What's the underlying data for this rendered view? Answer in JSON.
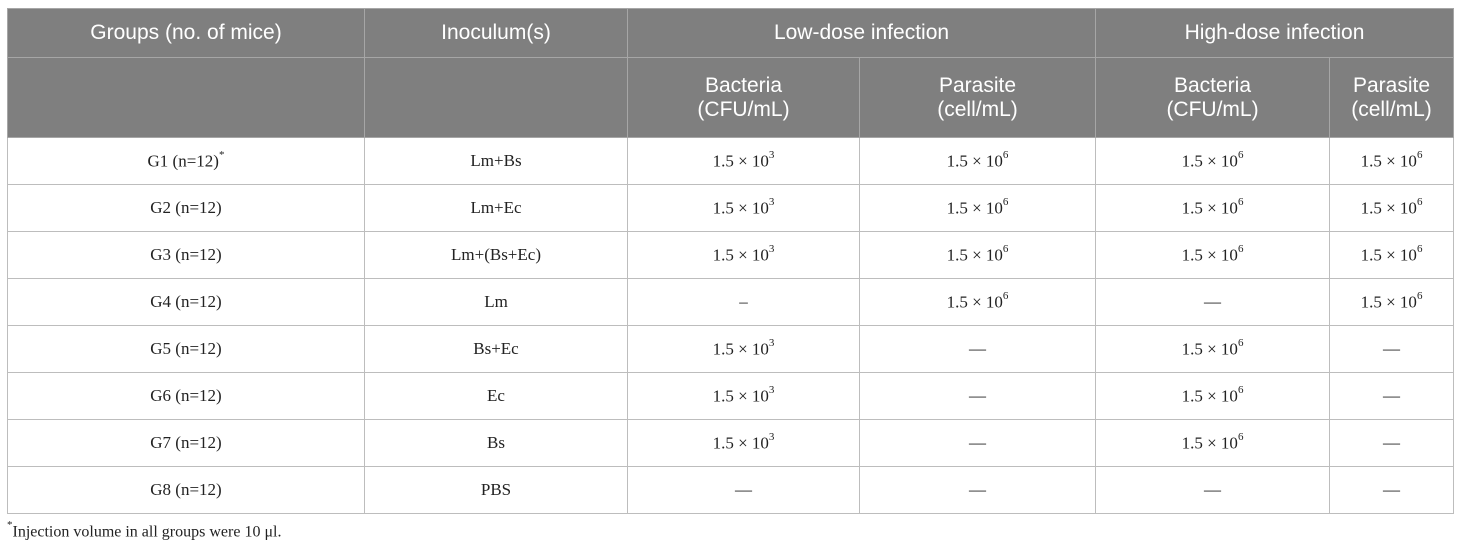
{
  "table": {
    "headers": {
      "groups": "Groups (no. of mice)",
      "inoculum": "Inoculum(s)",
      "low_dose": "Low-dose infection",
      "high_dose": "High-dose infection",
      "bacteria_line1": "Bacteria",
      "bacteria_line2": "(CFU/mL)",
      "parasite_line1": "Parasite",
      "parasite_line2": "(cell/mL)"
    },
    "rows": [
      {
        "group": "G1 (n=12)",
        "group_mark": "*",
        "inoculum": "Lm+Bs",
        "low_bacteria": {
          "base": "1.5 × 10",
          "exp": "3"
        },
        "low_parasite": {
          "base": "1.5 × 10",
          "exp": "6"
        },
        "high_bacteria": {
          "base": "1.5 × 10",
          "exp": "6"
        },
        "high_parasite": {
          "base": "1.5 × 10",
          "exp": "6"
        }
      },
      {
        "group": "G2 (n=12)",
        "group_mark": "",
        "inoculum": "Lm+Ec",
        "low_bacteria": {
          "base": "1.5 × 10",
          "exp": "3"
        },
        "low_parasite": {
          "base": "1.5 × 10",
          "exp": "6"
        },
        "high_bacteria": {
          "base": "1.5 × 10",
          "exp": "6"
        },
        "high_parasite": {
          "base": "1.5 × 10",
          "exp": "6"
        }
      },
      {
        "group": "G3 (n=12)",
        "group_mark": "",
        "inoculum": "Lm+(Bs+Ec)",
        "low_bacteria": {
          "base": "1.5 × 10",
          "exp": "3"
        },
        "low_parasite": {
          "base": "1.5 × 10",
          "exp": "6"
        },
        "high_bacteria": {
          "base": "1.5 × 10",
          "exp": "6"
        },
        "high_parasite": {
          "base": "1.5 × 10",
          "exp": "6"
        }
      },
      {
        "group": "G4 (n=12)",
        "group_mark": "",
        "inoculum": "Lm",
        "low_bacteria": {
          "base": "–",
          "exp": ""
        },
        "low_parasite": {
          "base": "1.5 × 10",
          "exp": "6"
        },
        "high_bacteria": {
          "base": "—",
          "exp": ""
        },
        "high_parasite": {
          "base": "1.5 × 10",
          "exp": "6"
        }
      },
      {
        "group": "G5 (n=12)",
        "group_mark": "",
        "inoculum": "Bs+Ec",
        "low_bacteria": {
          "base": "1.5 × 10",
          "exp": "3"
        },
        "low_parasite": {
          "base": "—",
          "exp": ""
        },
        "high_bacteria": {
          "base": "1.5 × 10",
          "exp": "6"
        },
        "high_parasite": {
          "base": "—",
          "exp": ""
        }
      },
      {
        "group": "G6 (n=12)",
        "group_mark": "",
        "inoculum": "Ec",
        "low_bacteria": {
          "base": "1.5 × 10",
          "exp": "3"
        },
        "low_parasite": {
          "base": "—",
          "exp": ""
        },
        "high_bacteria": {
          "base": "1.5 × 10",
          "exp": "6"
        },
        "high_parasite": {
          "base": "—",
          "exp": ""
        }
      },
      {
        "group": "G7 (n=12)",
        "group_mark": "",
        "inoculum": "Bs",
        "low_bacteria": {
          "base": "1.5 × 10",
          "exp": "3"
        },
        "low_parasite": {
          "base": "—",
          "exp": ""
        },
        "high_bacteria": {
          "base": "1.5 × 10",
          "exp": "6"
        },
        "high_parasite": {
          "base": "—",
          "exp": ""
        }
      },
      {
        "group": "G8 (n=12)",
        "group_mark": "",
        "inoculum": "PBS",
        "low_bacteria": {
          "base": "—",
          "exp": ""
        },
        "low_parasite": {
          "base": "—",
          "exp": ""
        },
        "high_bacteria": {
          "base": "—",
          "exp": ""
        },
        "high_parasite": {
          "base": "—",
          "exp": ""
        }
      }
    ]
  },
  "footnote": {
    "mark": "*",
    "text": "Injection volume in all groups were 10 μl."
  },
  "colors": {
    "header_bg": "#7f7f7f",
    "header_text": "#ffffff",
    "border": "#bdbdbd"
  }
}
